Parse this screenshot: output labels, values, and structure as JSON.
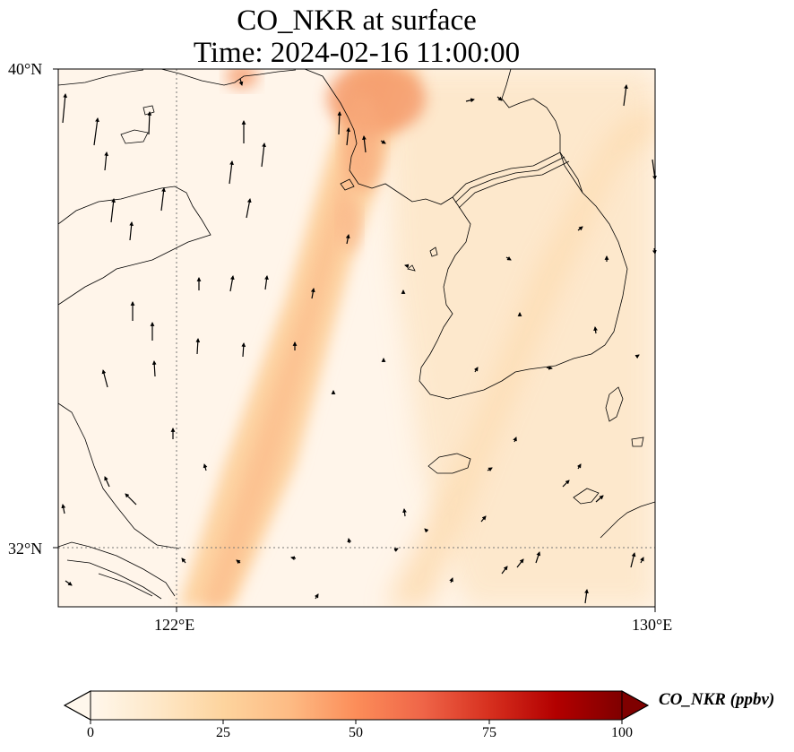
{
  "title": {
    "line1": "CO_NKR at surface",
    "line2": "Time: 2024-02-16 11:00:00"
  },
  "map": {
    "lon_range": [
      119.8,
      130.0
    ],
    "lat_range": [
      31.0,
      40.0
    ],
    "gridlines": {
      "lon": [
        122
      ],
      "lat": [
        32
      ]
    },
    "lat_labels": [
      "40°N",
      "32°N"
    ],
    "lon_labels": [
      "122°E",
      "130°E"
    ]
  },
  "colorbar": {
    "label": "CO_NKR (ppbv)",
    "ticks": [
      "0",
      "25",
      "50",
      "75",
      "100"
    ],
    "min": 0,
    "max": 100,
    "colormap": "OrRd",
    "extend": "both",
    "colors": [
      "#fff7ec",
      "#fee8c8",
      "#fdd49e",
      "#fdbb84",
      "#fc8d59",
      "#ef6548",
      "#d7301f",
      "#b30000",
      "#7f0000"
    ]
  },
  "wind_arrows": "wind-vector field drawn over map"
}
